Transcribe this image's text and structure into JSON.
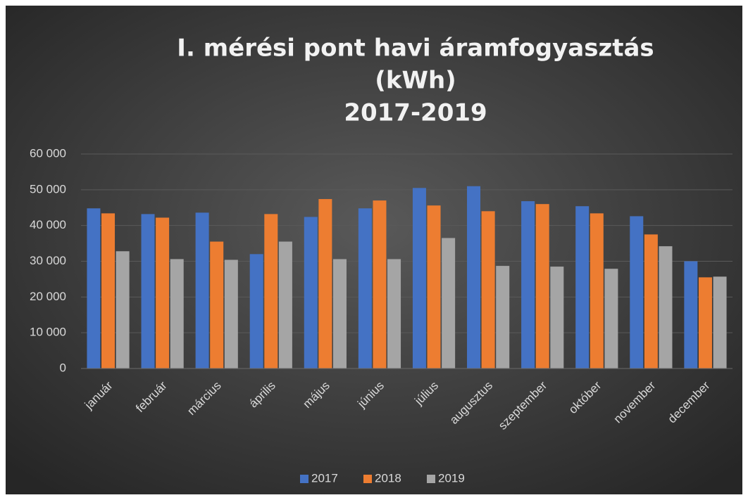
{
  "chart_data": {
    "type": "bar",
    "title": [
      "I. mérési pont havi áramfogyasztás",
      "(kWh)",
      "2017-2019"
    ],
    "categories": [
      "január",
      "február",
      "március",
      "április",
      "május",
      "június",
      "július",
      "augusztus",
      "szeptember",
      "október",
      "november",
      "december"
    ],
    "series": [
      {
        "name": "2017",
        "color": "#4472c4",
        "values": [
          44800,
          43200,
          43600,
          32000,
          42400,
          44800,
          50500,
          51000,
          46800,
          45400,
          42600,
          30000
        ]
      },
      {
        "name": "2018",
        "color": "#ed7d31",
        "values": [
          43400,
          42200,
          35500,
          43200,
          47400,
          47000,
          45600,
          44000,
          46000,
          43400,
          37500,
          25500
        ]
      },
      {
        "name": "2019",
        "color": "#a5a5a5",
        "values": [
          32800,
          30600,
          30400,
          35500,
          30600,
          30600,
          36500,
          28700,
          28500,
          27900,
          34200,
          25700
        ]
      }
    ],
    "ylim": [
      0,
      60000
    ],
    "yticks": [
      0,
      {
        "value": 10000,
        "label": "10 000"
      },
      {
        "value": 20000,
        "label": "20 000"
      },
      {
        "value": 30000,
        "label": "30 000"
      },
      {
        "value": 40000,
        "label": "40 000"
      },
      {
        "value": 50000,
        "label": "50 000"
      },
      {
        "value": 60000,
        "label": "60 000"
      }
    ],
    "grid": true,
    "legend": "bottom"
  }
}
